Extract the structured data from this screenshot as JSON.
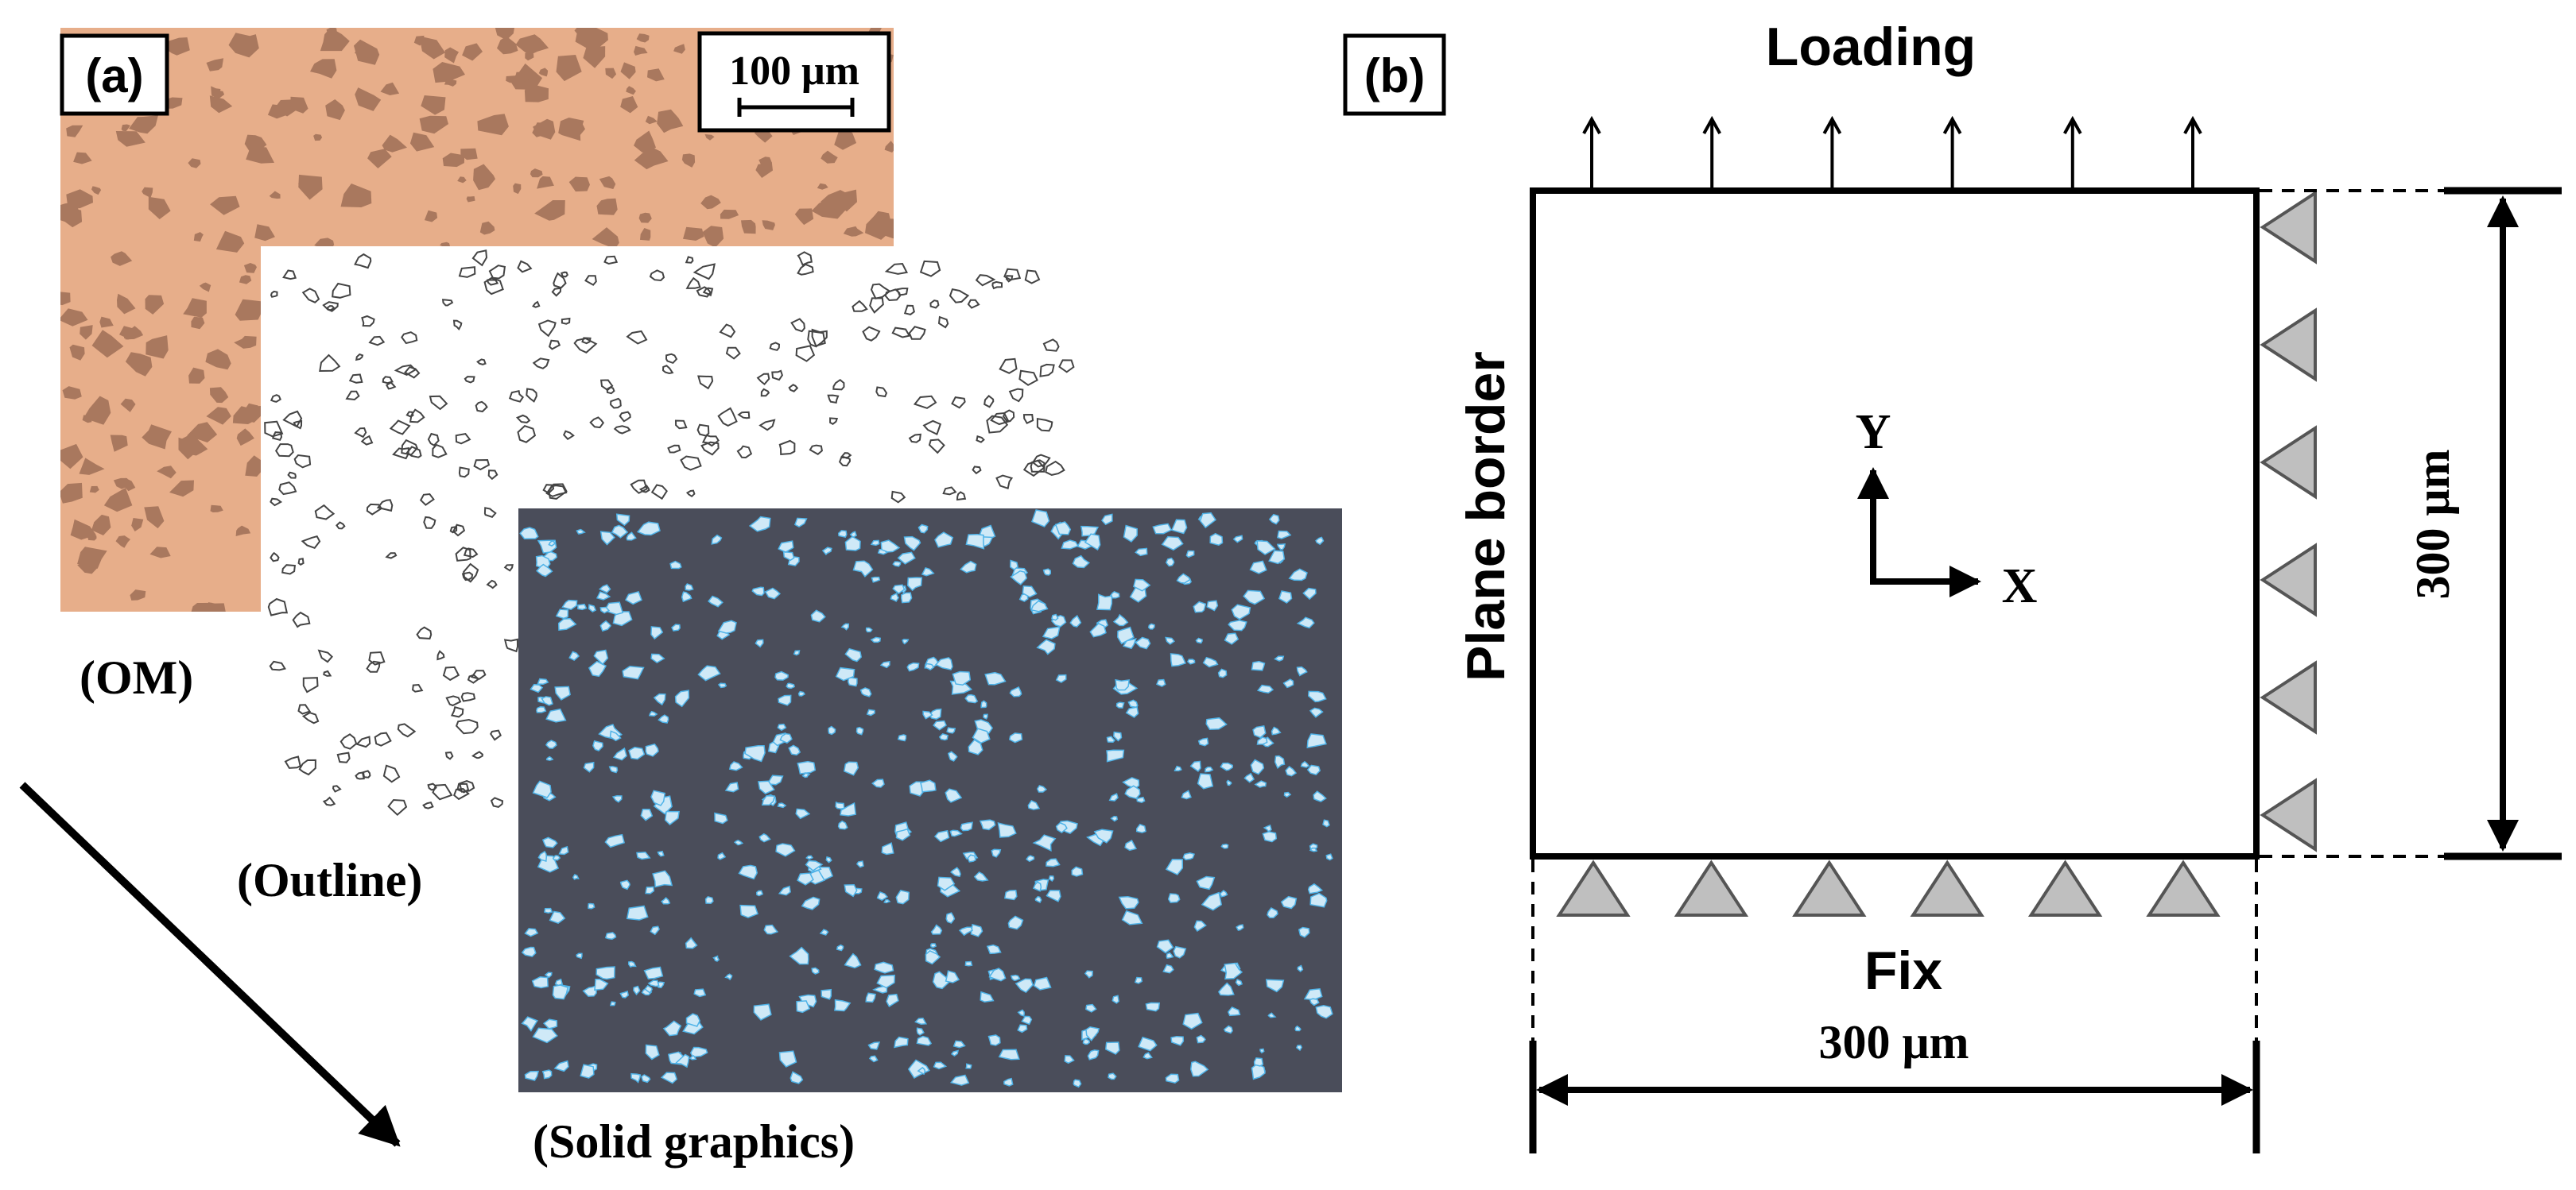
{
  "panel_a": {
    "label": "(a)",
    "scale_bar": "100 μm",
    "layers": {
      "om": "(OM)",
      "outline": "(Outline)",
      "solid": "(Solid graphics)"
    },
    "colors": {
      "om_background": "#e7ae8a",
      "om_particles": "#a9785e",
      "outline_stroke": "#444444",
      "solid_background": "#4a4d5a",
      "solid_particles": "#cfe9f7",
      "solid_particle_edges": "#4fb3e8"
    }
  },
  "panel_b": {
    "label": "(b)",
    "top_label": "Loading",
    "left_label": "Plane border",
    "bottom_label": "Fix",
    "width_label": "300 μm",
    "height_label": "300 μm",
    "axis_y": "Y",
    "axis_x": "X",
    "load_arrow_count": 6,
    "bottom_support_count": 6,
    "right_support_count": 6,
    "colors": {
      "support_fill": "#bfbfbf",
      "support_stroke": "#555555",
      "line": "#000000"
    }
  }
}
